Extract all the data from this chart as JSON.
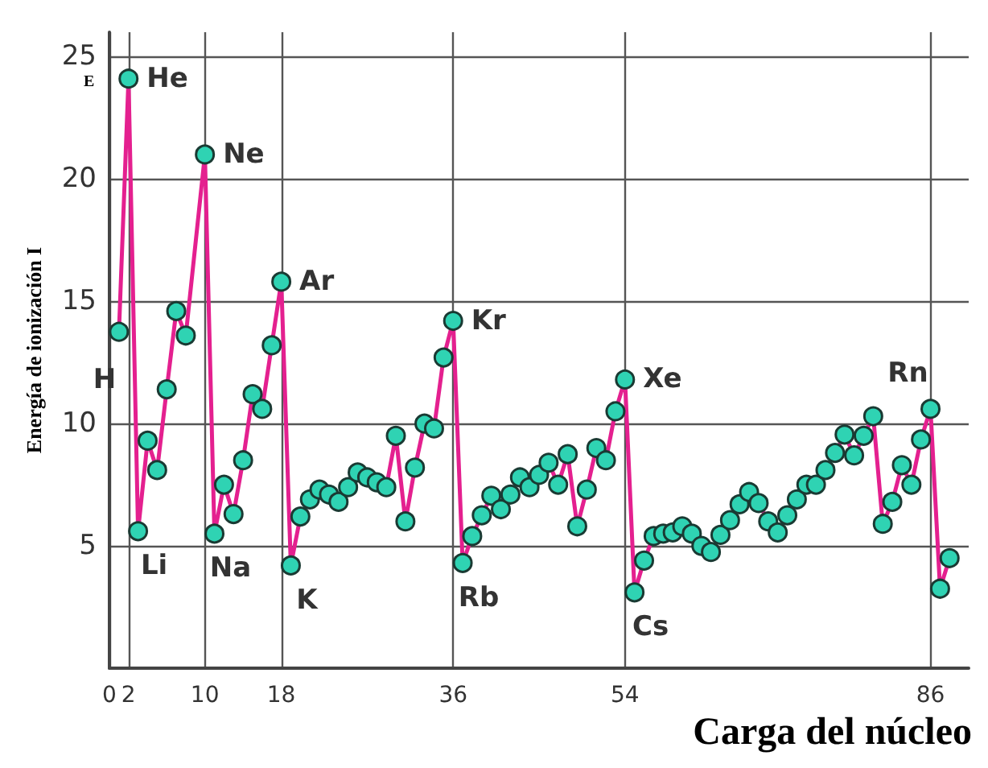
{
  "chart_data": {
    "type": "line",
    "xlabel": "Carga del núcleo",
    "ylabel": "Energía de ionización I",
    "x": [
      1,
      2,
      3,
      4,
      5,
      6,
      7,
      8,
      10,
      11,
      12,
      13,
      14,
      15,
      16,
      17,
      18,
      19,
      20,
      21,
      22,
      23,
      24,
      25,
      26,
      27,
      28,
      29,
      30,
      31,
      32,
      33,
      34,
      35,
      36,
      37,
      38,
      39,
      40,
      41,
      42,
      43,
      44,
      45,
      46,
      47,
      48,
      49,
      50,
      51,
      52,
      53,
      54,
      55,
      56,
      57,
      58,
      59,
      60,
      61,
      62,
      63,
      64,
      65,
      66,
      67,
      68,
      69,
      70,
      71,
      72,
      73,
      74,
      75,
      76,
      77,
      78,
      79,
      80,
      81,
      82,
      83,
      84,
      85,
      86,
      87,
      88
    ],
    "series": [
      {
        "color": "#e4208f",
        "values": [
          13.75,
          24.1,
          5.6,
          9.3,
          8.1,
          11.4,
          14.6,
          13.6,
          21.0,
          5.5,
          7.5,
          6.3,
          8.5,
          11.2,
          10.6,
          13.2,
          15.8,
          4.2,
          6.2,
          6.9,
          7.3,
          7.1,
          6.8,
          7.4,
          8.0,
          7.8,
          7.6,
          7.4,
          9.5,
          6.0,
          8.2,
          10.0,
          9.8,
          12.7,
          14.2,
          4.3,
          5.4,
          6.25,
          7.05,
          6.5,
          7.1,
          7.8,
          7.4,
          7.9,
          8.4,
          7.5,
          8.75,
          5.8,
          7.3,
          9.0,
          8.5,
          10.5,
          11.8,
          3.1,
          4.4,
          5.4,
          5.5,
          5.55,
          5.8,
          5.5,
          5.0,
          4.75,
          5.45,
          6.05,
          6.7,
          7.2,
          6.75,
          6.0,
          5.55,
          6.25,
          6.9,
          7.5,
          7.5,
          8.1,
          8.8,
          9.55,
          8.7,
          9.5,
          10.3,
          5.9,
          6.8,
          8.3,
          7.5,
          9.35,
          10.6,
          3.25,
          4.5
        ]
      }
    ],
    "marker": "circle",
    "xlim": [
      0,
      90
    ],
    "xticks": [
      0,
      2,
      10,
      18,
      36,
      54,
      86
    ],
    "ylim": [
      0,
      26
    ],
    "yticks": [
      5,
      10,
      15,
      20,
      25
    ],
    "grid": true,
    "annotations": [
      "E",
      {
        "text": "H",
        "x": 1,
        "y": 13.75
      },
      {
        "text": "He",
        "x": 2,
        "y": 24.1
      },
      {
        "text": "Li",
        "x": 3,
        "y": 5.6
      },
      {
        "text": "Ne",
        "x": 10,
        "y": 21.0
      },
      {
        "text": "Na",
        "x": 11,
        "y": 5.5
      },
      {
        "text": "Ar",
        "x": 18,
        "y": 15.8
      },
      {
        "text": "K",
        "x": 19,
        "y": 4.2
      },
      {
        "text": "Kr",
        "x": 36,
        "y": 14.2
      },
      {
        "text": "Rb",
        "x": 37,
        "y": 4.3
      },
      {
        "text": "Xe",
        "x": 54,
        "y": 11.8
      },
      {
        "text": "Cs",
        "x": 55,
        "y": 3.1
      },
      {
        "text": "Rn",
        "x": 86,
        "y": 10.6
      }
    ]
  }
}
